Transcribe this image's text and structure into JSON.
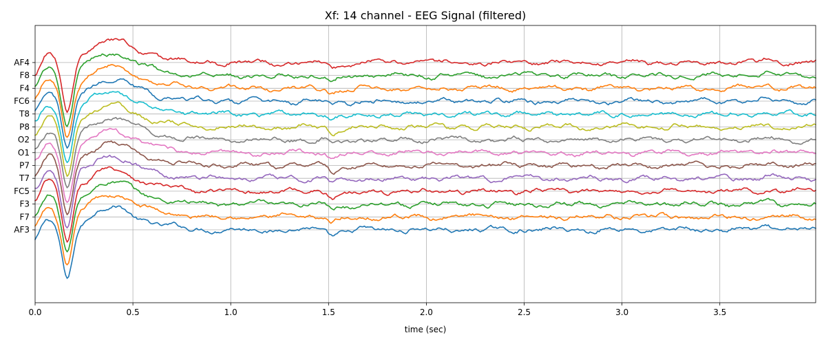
{
  "chart_data": {
    "type": "line",
    "title": "Xf: 14 channel - EEG Signal (filtered)",
    "xlabel": "time (sec)",
    "ylabel": "",
    "xlim": [
      0,
      3.99
    ],
    "x_ticks": [
      "0.0",
      "0.5",
      "1.0",
      "1.5",
      "2.0",
      "2.5",
      "3.0",
      "3.5"
    ],
    "x_tick_values": [
      0,
      0.5,
      1.0,
      1.5,
      2.0,
      2.5,
      3.0,
      3.5
    ],
    "y_tick_labels_top_to_bottom": [
      "AF4",
      "F8",
      "F4",
      "FC6",
      "T8",
      "P8",
      "O2",
      "O1",
      "P7",
      "T7",
      "FC5",
      "F3",
      "F7",
      "AF3"
    ],
    "grid": true,
    "legend": "none",
    "series": [
      {
        "name": "AF3",
        "color": "#1f77b4"
      },
      {
        "name": "F7",
        "color": "#ff7f0e"
      },
      {
        "name": "F3",
        "color": "#2ca02c"
      },
      {
        "name": "FC5",
        "color": "#d62728"
      },
      {
        "name": "T7",
        "color": "#9467bd"
      },
      {
        "name": "P7",
        "color": "#8c564b"
      },
      {
        "name": "O1",
        "color": "#e377c2"
      },
      {
        "name": "O2",
        "color": "#7f7f7f"
      },
      {
        "name": "P8",
        "color": "#bcbd22"
      },
      {
        "name": "T8",
        "color": "#17becf"
      },
      {
        "name": "FC6",
        "color": "#1f77b4"
      },
      {
        "name": "F4",
        "color": "#ff7f0e"
      },
      {
        "name": "F8",
        "color": "#2ca02c"
      },
      {
        "name": "AF4",
        "color": "#d62728"
      }
    ]
  }
}
